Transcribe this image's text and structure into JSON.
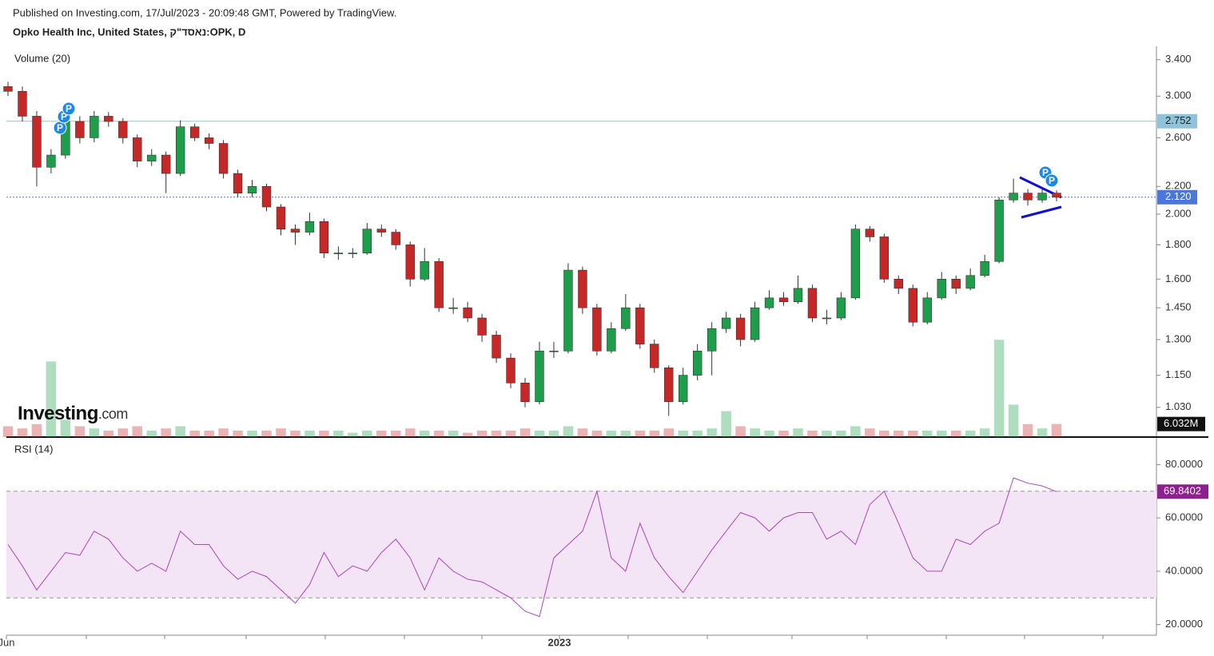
{
  "header": {
    "published": "Published on Investing.com, 17/Jul/2023 - 20:09:48 GMT, Powered by TradingView.",
    "symbol": "Opko Health Inc, United States, נאסד\"ק:OPK, D"
  },
  "logo": {
    "name": "Investing",
    "suffix": ".com"
  },
  "chart_data": [
    {
      "type": "candlestick",
      "volume_label": "Volume (20)",
      "open": [
        3.1,
        3.05,
        2.8,
        2.35,
        2.45,
        2.75,
        2.6,
        2.8,
        2.75,
        2.6,
        2.4,
        2.45,
        2.3,
        2.7,
        2.6,
        2.55,
        2.3,
        2.15,
        2.2,
        2.05,
        1.9,
        1.88,
        1.95,
        1.75,
        1.75,
        1.75,
        1.9,
        1.88,
        1.8,
        1.6,
        1.7,
        1.45,
        1.45,
        1.4,
        1.32,
        1.22,
        1.12,
        1.05,
        1.25,
        1.25,
        1.65,
        1.45,
        1.25,
        1.35,
        1.45,
        1.28,
        1.18,
        1.05,
        1.15,
        1.25,
        1.35,
        1.4,
        1.3,
        1.45,
        1.5,
        1.48,
        1.55,
        1.4,
        1.4,
        1.5,
        1.9,
        1.85,
        1.6,
        1.55,
        1.38,
        1.5,
        1.6,
        1.55,
        1.62,
        1.7,
        2.1,
        2.15,
        2.1,
        2.15
      ],
      "high": [
        3.15,
        3.1,
        2.85,
        2.5,
        2.82,
        2.8,
        2.85,
        2.84,
        2.78,
        2.63,
        2.5,
        2.48,
        2.76,
        2.73,
        2.64,
        2.58,
        2.33,
        2.25,
        2.22,
        2.07,
        1.93,
        2.01,
        1.97,
        1.79,
        1.78,
        1.94,
        1.93,
        1.9,
        1.82,
        1.78,
        1.72,
        1.5,
        1.48,
        1.42,
        1.34,
        1.24,
        1.14,
        1.29,
        1.29,
        1.69,
        1.67,
        1.47,
        1.38,
        1.52,
        1.47,
        1.3,
        1.19,
        1.18,
        1.28,
        1.38,
        1.43,
        1.42,
        1.48,
        1.54,
        1.53,
        1.62,
        1.57,
        1.44,
        1.53,
        1.93,
        1.92,
        1.87,
        1.62,
        1.57,
        1.53,
        1.64,
        1.62,
        1.66,
        1.74,
        2.12,
        2.26,
        2.18,
        2.18,
        2.17
      ],
      "low": [
        3.0,
        2.75,
        2.2,
        2.3,
        2.42,
        2.55,
        2.56,
        2.7,
        2.55,
        2.35,
        2.36,
        2.15,
        2.28,
        2.57,
        2.5,
        2.26,
        2.12,
        2.12,
        2.02,
        1.86,
        1.8,
        1.86,
        1.72,
        1.71,
        1.72,
        1.74,
        1.85,
        1.77,
        1.56,
        1.59,
        1.43,
        1.42,
        1.38,
        1.29,
        1.2,
        1.1,
        1.03,
        1.04,
        1.22,
        1.24,
        1.42,
        1.23,
        1.24,
        1.34,
        1.26,
        1.16,
        1.0,
        1.04,
        1.13,
        1.15,
        1.33,
        1.27,
        1.29,
        1.44,
        1.46,
        1.47,
        1.38,
        1.37,
        1.39,
        1.49,
        1.82,
        1.58,
        1.52,
        1.36,
        1.37,
        1.49,
        1.52,
        1.54,
        1.61,
        1.69,
        2.08,
        2.06,
        2.08,
        2.09
      ],
      "close": [
        3.05,
        2.8,
        2.35,
        2.45,
        2.75,
        2.6,
        2.8,
        2.75,
        2.6,
        2.4,
        2.45,
        2.3,
        2.7,
        2.6,
        2.55,
        2.3,
        2.15,
        2.2,
        2.05,
        1.9,
        1.88,
        1.95,
        1.75,
        1.75,
        1.75,
        1.9,
        1.88,
        1.8,
        1.6,
        1.7,
        1.45,
        1.45,
        1.4,
        1.32,
        1.22,
        1.12,
        1.05,
        1.25,
        1.25,
        1.65,
        1.45,
        1.25,
        1.35,
        1.45,
        1.28,
        1.18,
        1.05,
        1.15,
        1.25,
        1.35,
        1.4,
        1.3,
        1.45,
        1.5,
        1.48,
        1.55,
        1.4,
        1.4,
        1.5,
        1.9,
        1.85,
        1.6,
        1.55,
        1.38,
        1.5,
        1.6,
        1.55,
        1.62,
        1.7,
        2.1,
        2.15,
        2.1,
        2.15,
        2.12
      ],
      "volume": [
        5000000,
        4000000,
        6000000,
        35000000,
        8000000,
        5000000,
        4000000,
        3000000,
        4000000,
        5000000,
        3000000,
        4000000,
        5000000,
        3000000,
        3000000,
        4000000,
        3000000,
        3000000,
        3000000,
        4000000,
        3000000,
        3000000,
        3000000,
        3000000,
        2000000,
        3000000,
        3000000,
        3000000,
        4000000,
        3000000,
        3000000,
        3000000,
        2000000,
        3000000,
        3000000,
        3000000,
        4000000,
        3000000,
        3000000,
        5000000,
        4000000,
        3000000,
        3000000,
        3000000,
        3000000,
        3000000,
        4000000,
        3000000,
        3000000,
        4000000,
        12000000,
        5000000,
        4000000,
        3000000,
        3000000,
        4000000,
        3000000,
        3000000,
        3000000,
        5000000,
        4000000,
        3000000,
        3000000,
        3000000,
        3000000,
        3000000,
        3000000,
        3000000,
        4000000,
        45000000,
        15000000,
        6000000,
        4000000,
        6032000
      ],
      "volume_last_label": "6.032M",
      "volume_ylim": [
        0,
        180000000
      ],
      "up_color": "#1e9e4a",
      "down_color": "#c62828",
      "log_scale": true,
      "ylim": [
        0.93,
        3.54
      ],
      "yticks": [
        {
          "value": 3.4,
          "label": "3.400"
        },
        {
          "value": 3,
          "label": "3.000"
        },
        {
          "value": 2.6,
          "label": "2.600"
        },
        {
          "value": 2.2,
          "label": "2.200"
        },
        {
          "value": 2,
          "label": "2.000"
        },
        {
          "value": 1.8,
          "label": "1.800"
        },
        {
          "value": 1.6,
          "label": "1.600"
        },
        {
          "value": 1.45,
          "label": "1.450"
        },
        {
          "value": 1.3,
          "label": "1.300"
        },
        {
          "value": 1.15,
          "label": "1.150"
        },
        {
          "value": 1.03,
          "label": "1.030"
        }
      ],
      "hlines": [
        {
          "value": 2.752,
          "color": "#8ec3da",
          "dashed": false
        },
        {
          "value": 2.12,
          "label": "2.120",
          "color": "#4a78d6",
          "dashed": true
        }
      ],
      "event_markers": [
        "P",
        "P",
        "P",
        "P",
        "P"
      ],
      "x_labels": [
        "Jun",
        "2023"
      ]
    },
    {
      "type": "line",
      "title": "RSI (14)",
      "values": [
        50,
        42,
        33,
        40,
        47,
        46,
        55,
        52,
        45,
        40,
        43,
        40,
        55,
        50,
        50,
        42,
        37,
        40,
        38,
        33,
        28,
        35,
        47,
        38,
        42,
        40,
        47,
        52,
        45,
        33,
        45,
        40,
        37,
        36,
        33,
        30,
        25,
        23,
        45,
        50,
        55,
        70,
        45,
        40,
        58,
        45,
        38,
        32,
        40,
        48,
        55,
        62,
        60,
        55,
        60,
        62,
        62,
        52,
        55,
        50,
        65,
        70,
        58,
        45,
        40,
        40,
        52,
        50,
        55,
        58,
        75,
        73,
        72,
        69.8402
      ],
      "color": "#ab47bc",
      "ylim": [
        16,
        90
      ],
      "yticks": [
        {
          "value": 80,
          "label": "80.0000"
        },
        {
          "value": 60,
          "label": "60.0000"
        },
        {
          "value": 40,
          "label": "40.0000"
        },
        {
          "value": 20,
          "label": "20.0000"
        }
      ],
      "bands": [
        30,
        70
      ],
      "band_color": "#f3e5f5",
      "last_color": "#8e1f8e"
    }
  ]
}
